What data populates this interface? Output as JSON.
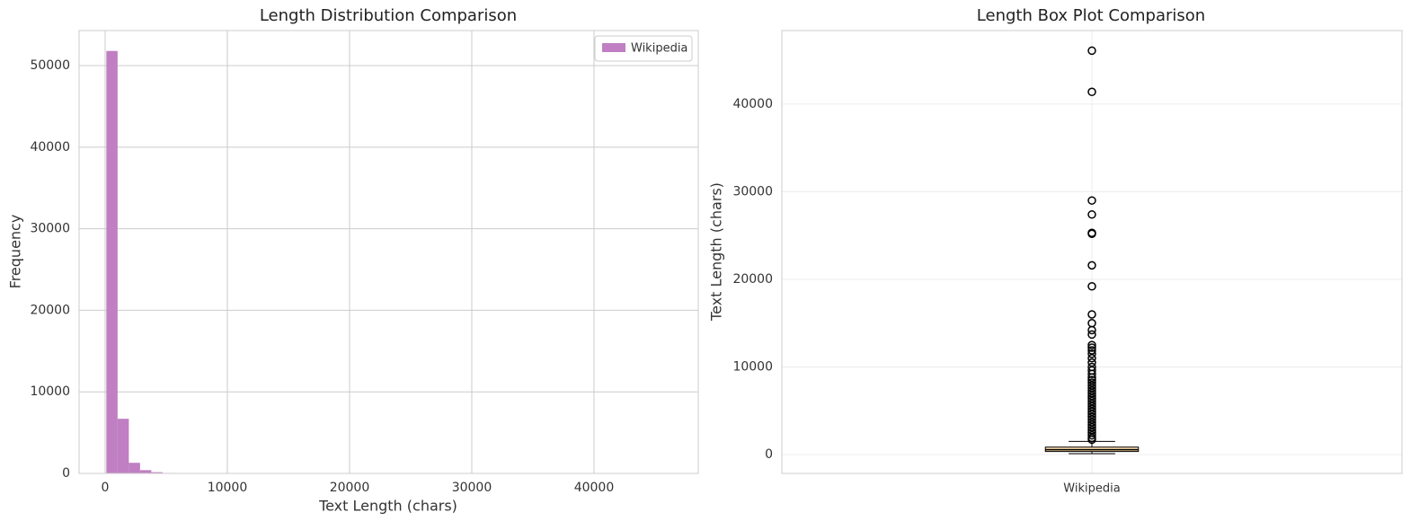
{
  "chart_data": [
    {
      "type": "histogram",
      "title": "Length Distribution Comparison",
      "x_label": "Text Length (chars)",
      "y_label": "Frequency",
      "bins": [
        100,
        1020,
        1940,
        2860,
        3780,
        4700,
        5620,
        6540,
        7460,
        8380,
        9300,
        10220,
        11140,
        12060,
        12980,
        13900,
        14820,
        15740,
        16660,
        17580,
        18500,
        19420,
        20340,
        21260,
        22180,
        23100,
        24020,
        24940,
        25860,
        26780,
        27700,
        28620,
        29540,
        30460,
        31380,
        32300,
        33220,
        34140,
        35060,
        35980,
        36900,
        37820,
        38740,
        39660,
        40580,
        41500,
        42420,
        43340,
        44260,
        45180,
        46100
      ],
      "series": [
        {
          "name": "Wikipedia",
          "color": "#bf7fc2",
          "values": [
            51800,
            6700,
            1300,
            400,
            150,
            60,
            30,
            15,
            10,
            6,
            5,
            4,
            3,
            2,
            1,
            1,
            1,
            1,
            0,
            0,
            2,
            0,
            0,
            1,
            0,
            0,
            0,
            2,
            0,
            1,
            0,
            1,
            0,
            0,
            0,
            0,
            0,
            0,
            0,
            0,
            0,
            0,
            0,
            0,
            1,
            0,
            0,
            0,
            0,
            1
          ]
        }
      ],
      "xlim": [
        -2130,
        48530
      ],
      "xticks": [
        0,
        10000,
        20000,
        30000,
        40000
      ],
      "ylim": [
        0,
        54300
      ],
      "yticks": [
        0,
        10000,
        20000,
        30000,
        40000,
        50000
      ],
      "grid": true,
      "legend": "upper right"
    },
    {
      "type": "box",
      "title": "Length Box Plot Comparison",
      "y_label": "Text Length (chars)",
      "categories": [
        "Wikipedia"
      ],
      "boxes": [
        {
          "whislo": 100,
          "q1": 350,
          "med": 550,
          "q3": 850,
          "whishi": 1500,
          "color": "#fddcaa",
          "fliers": [
            46100,
            41400,
            29000,
            27400,
            25300,
            25200,
            21600,
            19200,
            16000,
            15000,
            14200,
            13700,
            12500,
            12200,
            11900,
            11500,
            11000,
            10500,
            10000,
            9600,
            9200,
            8800,
            8500,
            8200,
            7900,
            7600,
            7300,
            7000,
            6700,
            6400,
            6100,
            5800,
            5500,
            5200,
            4900,
            4600,
            4300,
            4000,
            3700,
            3400,
            3100,
            2800,
            2500,
            2200,
            1900,
            1700
          ]
        }
      ],
      "ylim": [
        -2150,
        48400
      ],
      "yticks": [
        0,
        10000,
        20000,
        30000,
        40000
      ],
      "grid": true
    }
  ]
}
